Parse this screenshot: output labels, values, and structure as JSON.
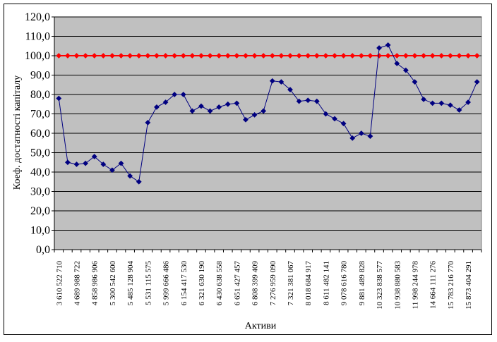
{
  "chart_data": {
    "type": "line",
    "title": "",
    "xlabel": "Активи",
    "ylabel": "Коеф. достатності капіталу",
    "ylim": [
      0,
      120
    ],
    "yticks": [
      0,
      10,
      20,
      30,
      40,
      50,
      60,
      70,
      80,
      90,
      100,
      110,
      120
    ],
    "ytick_labels": [
      "0,0",
      "10,0",
      "20,0",
      "30,0",
      "40,0",
      "50,0",
      "60,0",
      "70,0",
      "80,0",
      "90,0",
      "100,0",
      "110,0",
      "120,0"
    ],
    "grid": true,
    "plot_background": "#c0c0c0",
    "x_tick_labels": [
      "3 610 522 710",
      "4 689 988 722",
      "4 858 986 906",
      "5 300 542 600",
      "5 485 128 904",
      "5 531 115 575",
      "5 999 666 486",
      "6 154 417 530",
      "6 321 630 190",
      "6 430 638 558",
      "6 651 427 457",
      "6 808 399 409",
      "7 276 959 090",
      "7 321 381 067",
      "8 018 684 917",
      "8 611 482 141",
      "9 078 616 780",
      "9 881 489 828",
      "10 323 838 577",
      "10 938 880 583",
      "11 998 244 978",
      "14 664 111 276",
      "15 783 216 770",
      "15 873 404 291"
    ],
    "series": [
      {
        "color": "#000080",
        "marker": "diamond",
        "values": [
          78,
          45,
          44,
          44.5,
          48,
          44,
          41,
          44.5,
          38,
          35,
          65.5,
          73.5,
          76,
          80,
          80,
          71.5,
          74,
          71.5,
          73.5,
          75,
          75.5,
          67,
          69.5,
          71.5,
          87,
          86.5,
          82.5,
          76.5,
          77,
          76.5,
          70,
          67.5,
          65,
          57.5,
          60,
          58.5,
          104,
          105.5,
          96,
          92.5,
          86.5,
          77.5,
          75.5,
          75.5,
          74.5,
          72,
          76,
          86.5
        ]
      },
      {
        "color": "#ff0000",
        "marker": "diamond",
        "values": [
          100,
          100,
          100,
          100,
          100,
          100,
          100,
          100,
          100,
          100,
          100,
          100,
          100,
          100,
          100,
          100,
          100,
          100,
          100,
          100,
          100,
          100,
          100,
          100,
          100,
          100,
          100,
          100,
          100,
          100,
          100,
          100,
          100,
          100,
          100,
          100,
          100,
          100,
          100,
          100,
          100,
          100,
          100,
          100,
          100,
          100,
          100,
          100
        ]
      }
    ]
  }
}
